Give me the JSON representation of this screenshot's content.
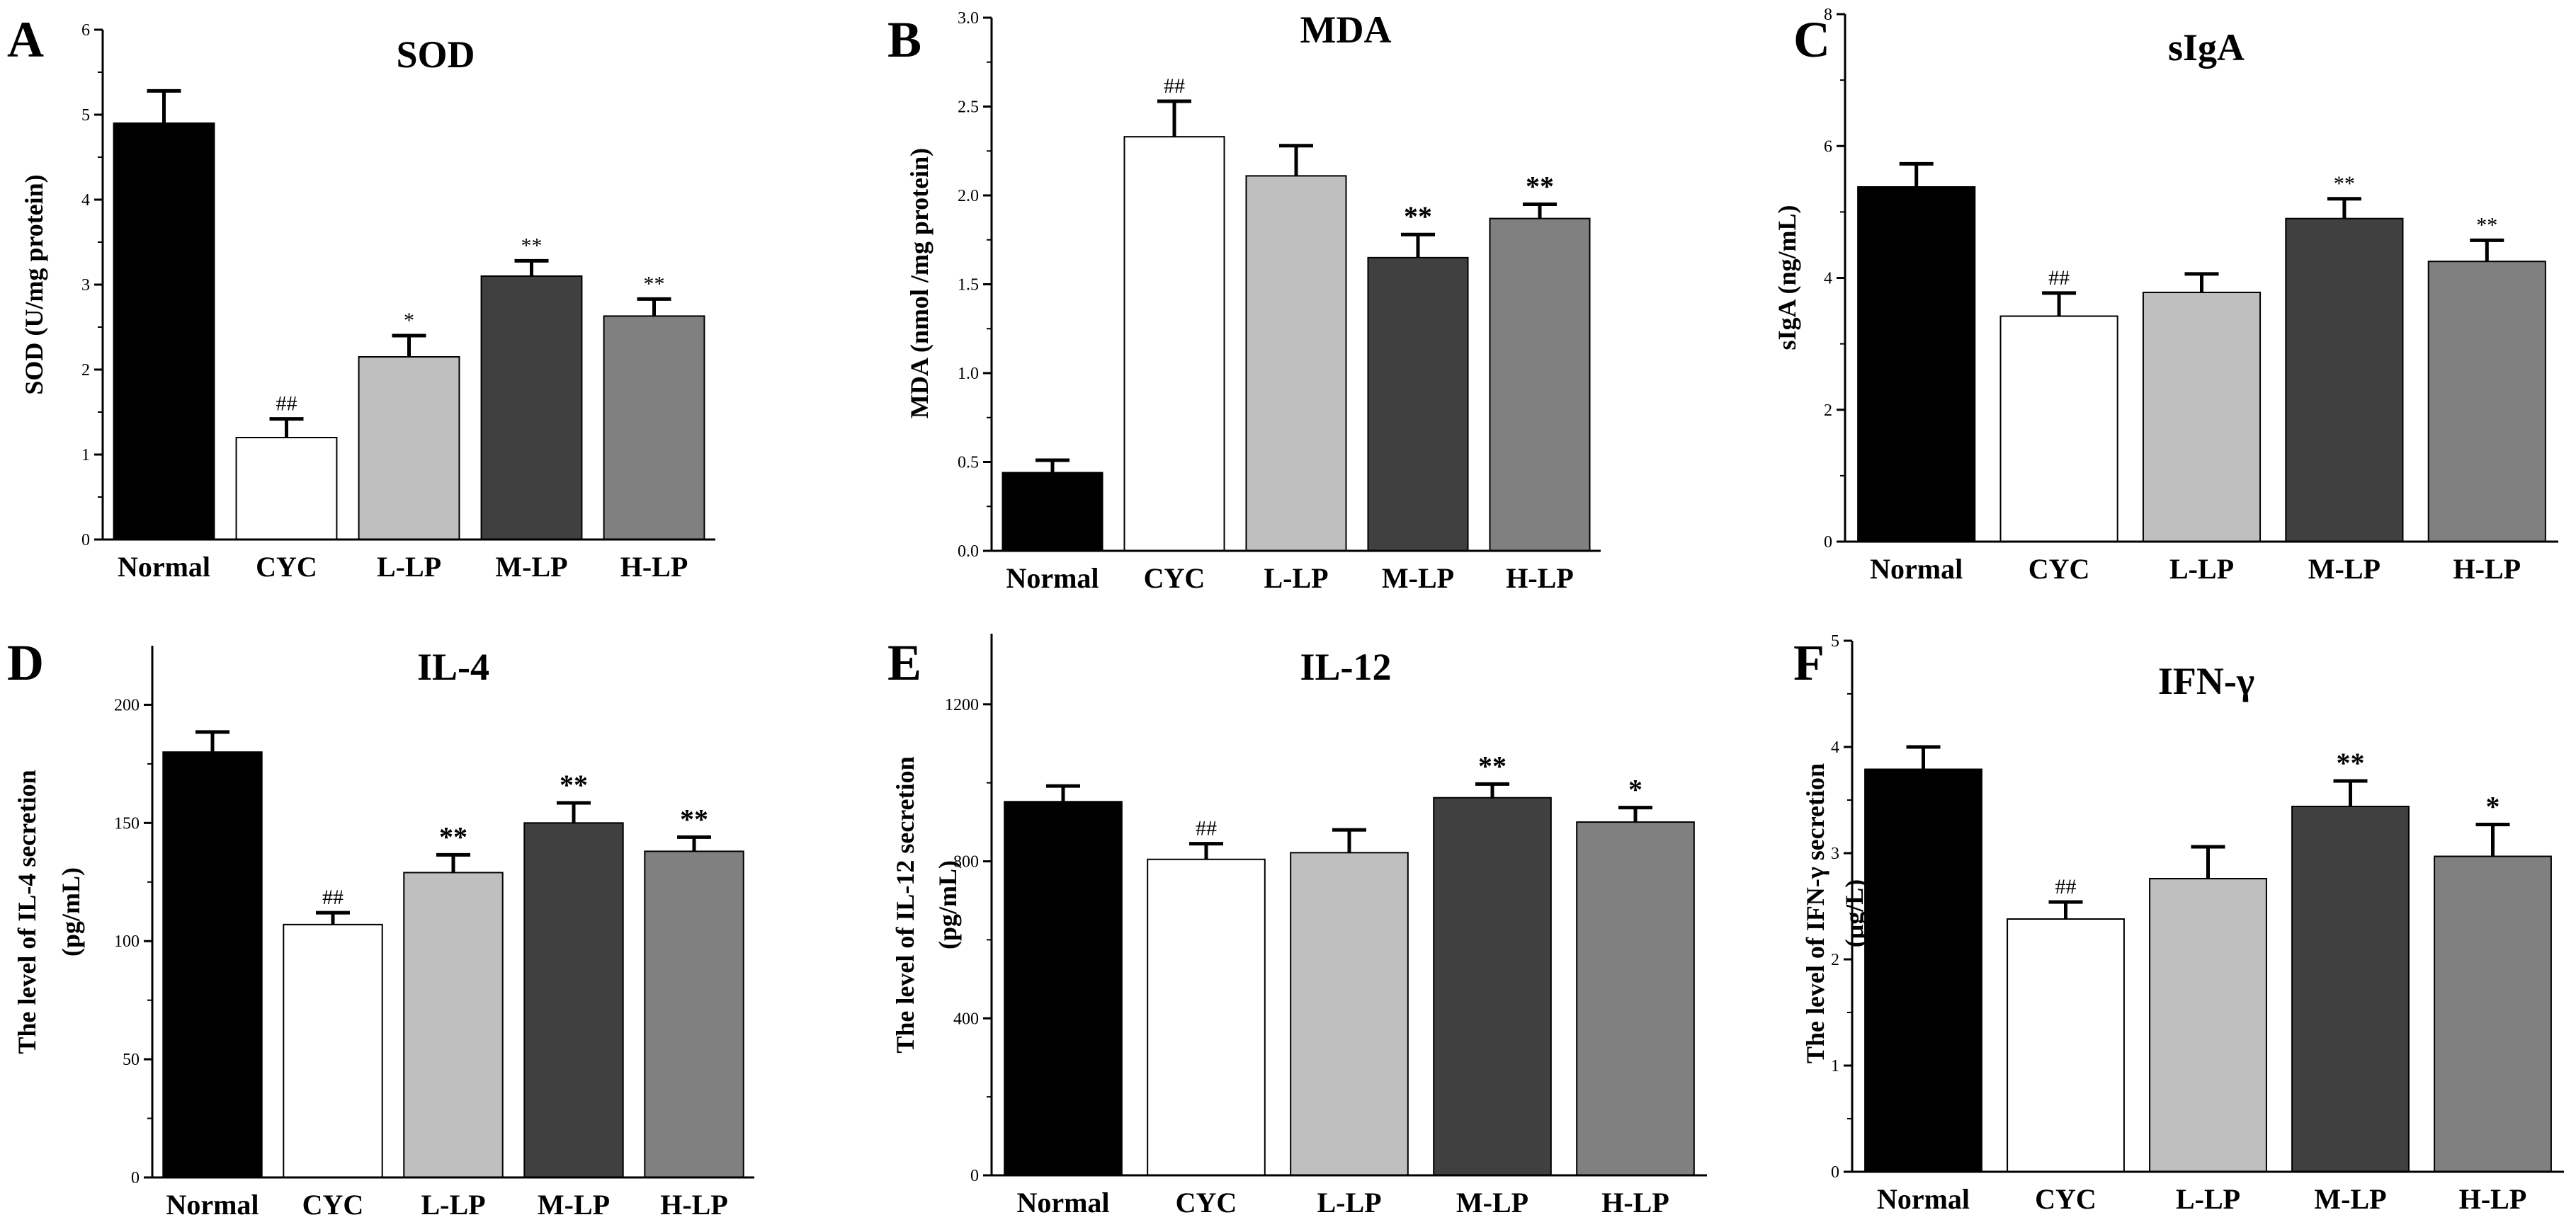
{
  "chart_data": [
    {
      "type": "bar",
      "panel": "A",
      "title": "SOD",
      "ylabel": "SOD (U/mg protein)",
      "xlabel": "",
      "categories": [
        "Normal",
        "CYC",
        "L-LP",
        "M-LP",
        "H-LP"
      ],
      "values": [
        4.9,
        1.2,
        2.15,
        3.1,
        2.63
      ],
      "errors": [
        0.38,
        0.22,
        0.25,
        0.18,
        0.2
      ],
      "significance": [
        "",
        "##",
        "*",
        "**",
        "**"
      ],
      "sig_bold": false,
      "ylim": [
        0,
        6
      ],
      "yticks": [
        0,
        1,
        2,
        3,
        4,
        5,
        6
      ],
      "ytick_labels": [
        "0",
        "1",
        "2",
        "3",
        "4",
        "5",
        "6"
      ],
      "colors": [
        "#000000",
        "#ffffff",
        "#bfbfbf",
        "#404040",
        "#808080"
      ]
    },
    {
      "type": "bar",
      "panel": "B",
      "title": "MDA",
      "ylabel": "MDA (nmol /mg protein)",
      "xlabel": "",
      "categories": [
        "Normal",
        "CYC",
        "L-LP",
        "M-LP",
        "H-LP"
      ],
      "values": [
        0.44,
        2.33,
        2.11,
        1.65,
        1.87
      ],
      "errors": [
        0.07,
        0.2,
        0.17,
        0.13,
        0.08
      ],
      "significance": [
        "",
        "##",
        "",
        "**",
        "**"
      ],
      "sig_bold": true,
      "ylim": [
        0,
        3
      ],
      "yticks": [
        0,
        0.5,
        1,
        1.5,
        2,
        2.5,
        3
      ],
      "ytick_labels": [
        "0.0",
        "0.5",
        "1.0",
        "1.5",
        "2.0",
        "2.5",
        "3.0"
      ],
      "colors": [
        "#000000",
        "#ffffff",
        "#bfbfbf",
        "#404040",
        "#808080"
      ]
    },
    {
      "type": "bar",
      "panel": "C",
      "title": "sIgA",
      "ylabel": "sIgA (ng/mL)",
      "xlabel": "",
      "categories": [
        "Normal",
        "CYC",
        "L-LP",
        "M-LP",
        "H-LP"
      ],
      "values": [
        5.38,
        3.42,
        3.78,
        4.9,
        4.25
      ],
      "errors": [
        0.35,
        0.35,
        0.28,
        0.3,
        0.32
      ],
      "significance": [
        "",
        "##",
        "",
        "**",
        "**"
      ],
      "sig_bold": false,
      "ylim": [
        0,
        8
      ],
      "yticks": [
        0,
        2,
        4,
        6,
        8
      ],
      "ytick_labels": [
        "0",
        "2",
        "4",
        "6",
        "8"
      ],
      "colors": [
        "#000000",
        "#ffffff",
        "#bfbfbf",
        "#404040",
        "#808080"
      ]
    },
    {
      "type": "bar",
      "panel": "D",
      "title": "IL-4",
      "ylabel": [
        "The level of IL-4 secretion",
        "(pg/mL)"
      ],
      "xlabel": "",
      "categories": [
        "Normal",
        "CYC",
        "L-LP",
        "M-LP",
        "H-LP"
      ],
      "values": [
        180,
        107,
        129,
        150,
        138
      ],
      "errors": [
        8.5,
        5,
        7.5,
        8.5,
        6
      ],
      "significance": [
        "",
        "##",
        "**",
        "**",
        "**"
      ],
      "sig_bold": true,
      "ylim": [
        0,
        225
      ],
      "yticks": [
        0,
        50,
        100,
        150,
        200
      ],
      "ytick_labels": [
        "0",
        "50",
        "100",
        "150",
        "200"
      ],
      "colors": [
        "#000000",
        "#ffffff",
        "#bfbfbf",
        "#404040",
        "#808080"
      ]
    },
    {
      "type": "bar",
      "panel": "E",
      "title": "IL-12",
      "ylabel": [
        "The level of IL-12 secretion",
        "(pg/mL)"
      ],
      "xlabel": "",
      "categories": [
        "Normal",
        "CYC",
        "L-LP",
        "M-LP",
        "H-LP"
      ],
      "values": [
        952,
        805,
        822,
        962,
        900
      ],
      "errors": [
        40,
        40,
        58,
        35,
        37
      ],
      "significance": [
        "",
        "##",
        "",
        "**",
        "*"
      ],
      "sig_bold": true,
      "ylim": [
        0,
        1380
      ],
      "yticks": [
        0,
        400,
        800,
        1200
      ],
      "ytick_labels": [
        "0",
        "400",
        "800",
        "1200"
      ],
      "colors": [
        "#000000",
        "#ffffff",
        "#bfbfbf",
        "#404040",
        "#808080"
      ]
    },
    {
      "type": "bar",
      "panel": "F",
      "title": "IFN-γ",
      "ylabel": [
        "The level of IFN-γ secretion",
        "(μg/L)"
      ],
      "xlabel": "",
      "categories": [
        "Normal",
        "CYC",
        "L-LP",
        "M-LP",
        "H-LP"
      ],
      "values": [
        3.79,
        2.38,
        2.76,
        3.44,
        2.97
      ],
      "errors": [
        0.21,
        0.16,
        0.3,
        0.24,
        0.3
      ],
      "significance": [
        "",
        "##",
        "",
        "**",
        "*"
      ],
      "sig_bold": true,
      "ylim": [
        0,
        5
      ],
      "yticks": [
        0,
        1,
        2,
        3,
        4,
        5
      ],
      "ytick_labels": [
        "0",
        "1",
        "2",
        "3",
        "4",
        "5"
      ],
      "colors": [
        "#000000",
        "#ffffff",
        "#bfbfbf",
        "#404040",
        "#808080"
      ]
    }
  ]
}
